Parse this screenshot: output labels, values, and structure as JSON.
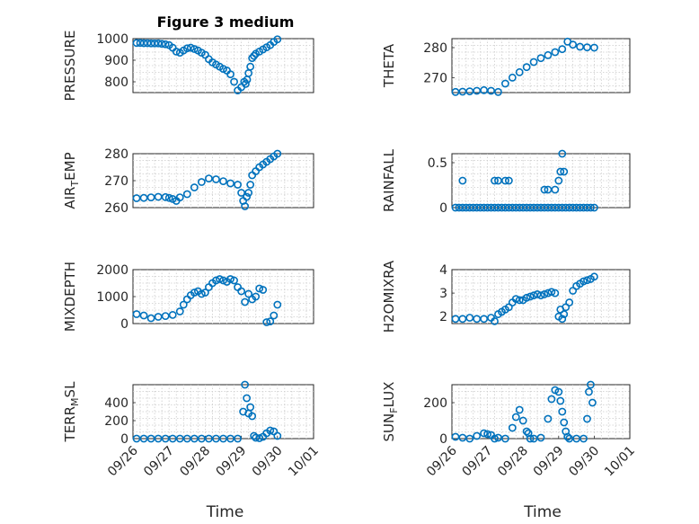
{
  "figure_title": "Figure 3 medium",
  "colors": {
    "marker": "#0072BD",
    "axis": "#262626",
    "grid": "#cccccc"
  },
  "chart_data": [
    {
      "type": "scatter",
      "ylabel": "PRESSURE",
      "ylim": [
        750,
        1000
      ],
      "yticks": [
        "1000",
        "900",
        "800"
      ],
      "ytick_values": [
        1000,
        900,
        800
      ],
      "xlim": [
        0,
        5
      ],
      "xticks": [],
      "grid": true,
      "x": [
        0.1,
        0.2,
        0.3,
        0.4,
        0.5,
        0.6,
        0.7,
        0.8,
        0.9,
        1.0,
        1.1,
        1.2,
        1.3,
        1.4,
        1.5,
        1.6,
        1.7,
        1.8,
        1.9,
        2.0,
        2.1,
        2.2,
        2.3,
        2.4,
        2.5,
        2.6,
        2.7,
        2.8,
        2.9,
        3.0,
        3.08,
        3.12,
        3.16,
        3.2,
        3.25,
        3.3,
        3.35,
        3.4,
        3.5,
        3.6,
        3.7,
        3.8,
        3.9,
        4.0
      ],
      "y": [
        980,
        980,
        979,
        979,
        978,
        978,
        978,
        976,
        974,
        970,
        958,
        940,
        935,
        945,
        955,
        958,
        952,
        945,
        935,
        925,
        905,
        890,
        880,
        870,
        860,
        852,
        835,
        800,
        760,
        775,
        800,
        790,
        810,
        840,
        870,
        910,
        920,
        930,
        940,
        950,
        960,
        970,
        985,
        997
      ]
    },
    {
      "type": "scatter",
      "ylabel": "THETA",
      "ylim": [
        265,
        283
      ],
      "yticks": [
        "280",
        "270"
      ],
      "ytick_values": [
        280,
        270
      ],
      "xlim": [
        0,
        5
      ],
      "xticks": [],
      "grid": true,
      "x": [
        0.1,
        0.3,
        0.5,
        0.7,
        0.9,
        1.1,
        1.3,
        1.5,
        1.7,
        1.9,
        2.1,
        2.3,
        2.5,
        2.7,
        2.9,
        3.1,
        3.25,
        3.4,
        3.6,
        3.8,
        4.0
      ],
      "y": [
        265.2,
        265.3,
        265.4,
        265.6,
        265.8,
        265.6,
        265.2,
        268,
        270,
        271.8,
        273.5,
        275.2,
        276.5,
        277.5,
        278.5,
        279.5,
        282,
        281,
        280.3,
        280.1,
        280
      ]
    },
    {
      "type": "scatter",
      "ylabel": "AIR_TEMP",
      "ylim": [
        260,
        280
      ],
      "yticks": [
        "280",
        "270",
        "260"
      ],
      "ytick_values": [
        280,
        270,
        260
      ],
      "xlim": [
        0,
        5
      ],
      "xticks": [],
      "grid": true,
      "x": [
        0.1,
        0.3,
        0.5,
        0.7,
        0.9,
        1.0,
        1.1,
        1.2,
        1.3,
        1.5,
        1.7,
        1.9,
        2.1,
        2.3,
        2.5,
        2.7,
        2.9,
        3.0,
        3.05,
        3.1,
        3.15,
        3.2,
        3.25,
        3.3,
        3.4,
        3.5,
        3.6,
        3.7,
        3.8,
        3.9,
        4.0
      ],
      "y": [
        263.5,
        263.6,
        263.8,
        264,
        263.9,
        263.6,
        263.2,
        262.5,
        263.8,
        265,
        267.5,
        269.5,
        270.8,
        270.5,
        269.8,
        269,
        268.5,
        265.5,
        262.5,
        260.5,
        264,
        265.5,
        268.5,
        272,
        273.5,
        275,
        276,
        277,
        278,
        279,
        280
      ]
    },
    {
      "type": "scatter",
      "ylabel": "RAINFALL",
      "ylim": [
        0,
        0.6
      ],
      "yticks": [
        "0.5",
        "0"
      ],
      "ytick_values": [
        0.5,
        0
      ],
      "xlim": [
        0,
        5
      ],
      "xticks": [],
      "grid": true,
      "x": [
        0.1,
        0.2,
        0.3,
        0.4,
        0.5,
        0.6,
        0.7,
        0.8,
        0.9,
        1.0,
        1.1,
        1.2,
        1.3,
        1.4,
        1.5,
        1.6,
        1.7,
        1.8,
        1.9,
        2.0,
        2.1,
        2.2,
        2.3,
        2.4,
        2.5,
        2.6,
        2.7,
        2.8,
        2.9,
        3.0,
        3.1,
        3.2,
        3.3,
        3.4,
        3.5,
        3.6,
        3.7,
        3.8,
        3.9,
        4.0,
        0.3,
        1.2,
        1.3,
        1.5,
        1.6,
        2.6,
        2.7,
        2.9,
        3.0,
        3.05,
        3.1,
        3.15
      ],
      "y": [
        0,
        0,
        0,
        0,
        0,
        0,
        0,
        0,
        0,
        0,
        0,
        0,
        0,
        0,
        0,
        0,
        0,
        0,
        0,
        0,
        0,
        0,
        0,
        0,
        0,
        0,
        0,
        0,
        0,
        0,
        0,
        0,
        0,
        0,
        0,
        0,
        0,
        0,
        0,
        0,
        0.3,
        0.3,
        0.3,
        0.3,
        0.3,
        0.2,
        0.2,
        0.2,
        0.3,
        0.4,
        0.6,
        0.4
      ]
    },
    {
      "type": "scatter",
      "ylabel": "MIXDEPTH",
      "ylim": [
        0,
        2000
      ],
      "yticks": [
        "2000",
        "1000",
        "0"
      ],
      "ytick_values": [
        2000,
        1000,
        0
      ],
      "xlim": [
        0,
        5
      ],
      "xticks": [],
      "grid": true,
      "x": [
        0.1,
        0.3,
        0.5,
        0.7,
        0.9,
        1.1,
        1.3,
        1.4,
        1.5,
        1.6,
        1.7,
        1.8,
        1.9,
        2.0,
        2.1,
        2.2,
        2.3,
        2.4,
        2.5,
        2.6,
        2.7,
        2.8,
        2.9,
        3.0,
        3.1,
        3.2,
        3.3,
        3.4,
        3.5,
        3.6,
        3.7,
        3.8,
        3.9,
        4.0
      ],
      "y": [
        350,
        300,
        200,
        250,
        280,
        320,
        450,
        700,
        900,
        1050,
        1150,
        1200,
        1100,
        1150,
        1350,
        1500,
        1600,
        1650,
        1600,
        1550,
        1650,
        1600,
        1350,
        1200,
        800,
        1100,
        900,
        1000,
        1300,
        1250,
        50,
        80,
        300,
        700
      ]
    },
    {
      "type": "scatter",
      "ylabel": "H2OMIXRA",
      "ylim": [
        1.7,
        4
      ],
      "yticks": [
        "4",
        "3",
        "2"
      ],
      "ytick_values": [
        4,
        3,
        2
      ],
      "xlim": [
        0,
        5
      ],
      "xticks": [],
      "grid": true,
      "x": [
        0.1,
        0.3,
        0.5,
        0.7,
        0.9,
        1.1,
        1.2,
        1.3,
        1.4,
        1.5,
        1.6,
        1.7,
        1.8,
        1.9,
        2.0,
        2.1,
        2.2,
        2.3,
        2.4,
        2.5,
        2.6,
        2.7,
        2.8,
        2.9,
        3.0,
        3.05,
        3.1,
        3.15,
        3.2,
        3.3,
        3.4,
        3.5,
        3.6,
        3.7,
        3.8,
        3.9,
        4.0
      ],
      "y": [
        1.9,
        1.9,
        1.95,
        1.9,
        1.9,
        1.95,
        1.8,
        2.1,
        2.2,
        2.3,
        2.4,
        2.6,
        2.75,
        2.7,
        2.7,
        2.8,
        2.85,
        2.9,
        2.95,
        2.9,
        2.95,
        3.0,
        3.05,
        3.0,
        2.0,
        2.3,
        1.9,
        2.1,
        2.4,
        2.6,
        3.1,
        3.3,
        3.4,
        3.5,
        3.55,
        3.6,
        3.7
      ]
    },
    {
      "type": "scatter",
      "ylabel": "TERR_MSL",
      "ylim": [
        0,
        600
      ],
      "yticks": [
        "400",
        "200",
        "0"
      ],
      "ytick_values": [
        400,
        200,
        0
      ],
      "xlim": [
        0,
        5
      ],
      "xticks": [
        "09/26",
        "09/27",
        "09/28",
        "09/29",
        "09/30",
        "10/01"
      ],
      "xtick_values": [
        0,
        1,
        2,
        3,
        4,
        5
      ],
      "xlabel": "Time",
      "grid": true,
      "x": [
        0.1,
        0.3,
        0.5,
        0.7,
        0.9,
        1.1,
        1.3,
        1.5,
        1.7,
        1.9,
        2.1,
        2.3,
        2.5,
        2.7,
        2.9,
        3.05,
        3.1,
        3.15,
        3.2,
        3.25,
        3.3,
        3.35,
        3.4,
        3.5,
        3.6,
        3.7,
        3.8,
        3.9,
        4.0
      ],
      "y": [
        0,
        0,
        0,
        0,
        0,
        0,
        0,
        0,
        0,
        0,
        0,
        0,
        0,
        0,
        0,
        300,
        600,
        450,
        280,
        350,
        250,
        30,
        10,
        5,
        20,
        60,
        90,
        80,
        30
      ]
    },
    {
      "type": "scatter",
      "ylabel": "SUN_FLUX",
      "ylim": [
        0,
        300
      ],
      "yticks": [
        "200",
        "0"
      ],
      "ytick_values": [
        200,
        0
      ],
      "xlim": [
        0,
        5
      ],
      "xticks": [
        "09/26",
        "09/27",
        "09/28",
        "09/29",
        "09/30",
        "10/01"
      ],
      "xtick_values": [
        0,
        1,
        2,
        3,
        4,
        5
      ],
      "xlabel": "Time",
      "grid": true,
      "x": [
        0.1,
        0.3,
        0.5,
        0.7,
        0.9,
        1.0,
        1.1,
        1.2,
        1.3,
        1.5,
        1.7,
        1.8,
        1.9,
        2.0,
        2.1,
        2.15,
        2.2,
        2.3,
        2.5,
        2.7,
        2.8,
        2.9,
        3.0,
        3.05,
        3.1,
        3.15,
        3.2,
        3.25,
        3.3,
        3.5,
        3.7,
        3.8,
        3.85,
        3.9,
        3.95
      ],
      "y": [
        10,
        5,
        0,
        15,
        30,
        25,
        20,
        0,
        5,
        0,
        60,
        120,
        160,
        100,
        40,
        30,
        0,
        0,
        5,
        110,
        220,
        270,
        260,
        210,
        150,
        90,
        40,
        10,
        0,
        0,
        0,
        110,
        260,
        300,
        200
      ]
    }
  ]
}
